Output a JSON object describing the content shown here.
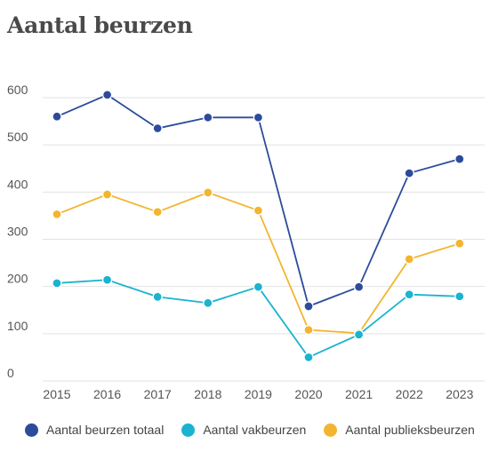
{
  "chart_data": {
    "type": "line",
    "title": "Aantal beurzen",
    "xlabel": "",
    "ylabel": "",
    "x": [
      "2015",
      "2016",
      "2017",
      "2018",
      "2019",
      "2020",
      "2021",
      "2022",
      "2023"
    ],
    "ylim": [
      0,
      600
    ],
    "yticks": [
      "0",
      "100",
      "200",
      "300",
      "400",
      "500",
      "600"
    ],
    "grid": true,
    "legend": "bottom",
    "series": [
      {
        "name": "Aantal beurzen totaal",
        "color": "#2d4b9b",
        "values": [
          560,
          606,
          535,
          558,
          558,
          158,
          199,
          440,
          470
        ]
      },
      {
        "name": "Aantal vakbeurzen",
        "color": "#1ab3d0",
        "values": [
          207,
          214,
          178,
          165,
          199,
          50,
          98,
          183,
          179
        ]
      },
      {
        "name": "Aantal publieksbeurzen",
        "color": "#f3b52f",
        "values": [
          353,
          395,
          358,
          399,
          361,
          108,
          101,
          258,
          291
        ]
      }
    ]
  }
}
